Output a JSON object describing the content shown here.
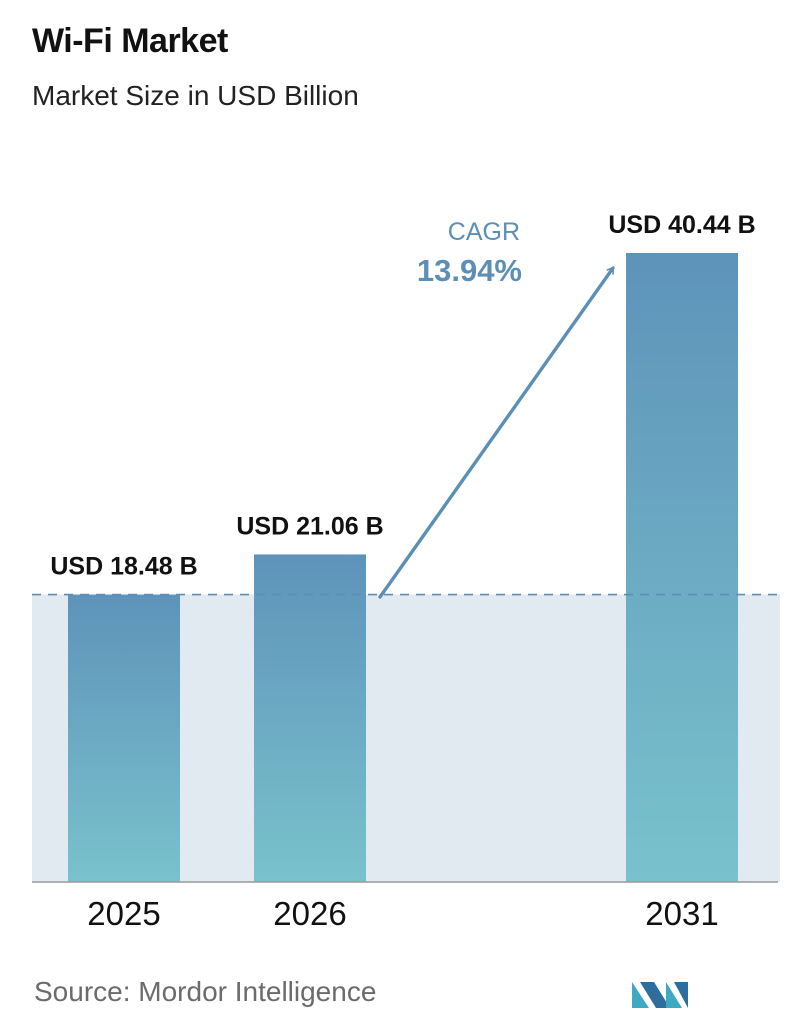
{
  "header": {
    "title": "Wi-Fi Market",
    "subtitle": "Market Size in USD Billion"
  },
  "chart_data": {
    "type": "bar",
    "categories": [
      "2025",
      "2026",
      "2031"
    ],
    "values": [
      18.48,
      21.06,
      40.44
    ],
    "value_labels": [
      "USD 18.48 B",
      "USD 21.06 B",
      "USD 40.44 B"
    ],
    "unit": "USD Billion",
    "annotation": {
      "label": "CAGR",
      "value": "13.94%"
    },
    "reference_line": {
      "value": 18.48,
      "style": "dashed"
    },
    "ylim": [
      0,
      40.44
    ],
    "grid": false,
    "legend": "none"
  },
  "colors": {
    "bar_top": "#5e93ba",
    "bar_bottom": "#79c2cc",
    "shaded_band": "#e1e9f1",
    "arrow": "#5b8fb6",
    "cagr_label": "#5b8fb6",
    "axis": "#999999",
    "dashed_line": "#5b8fb6"
  },
  "footer": {
    "source": "Source:  Mordor Intelligence",
    "logo": "mordor-intelligence-logo"
  }
}
